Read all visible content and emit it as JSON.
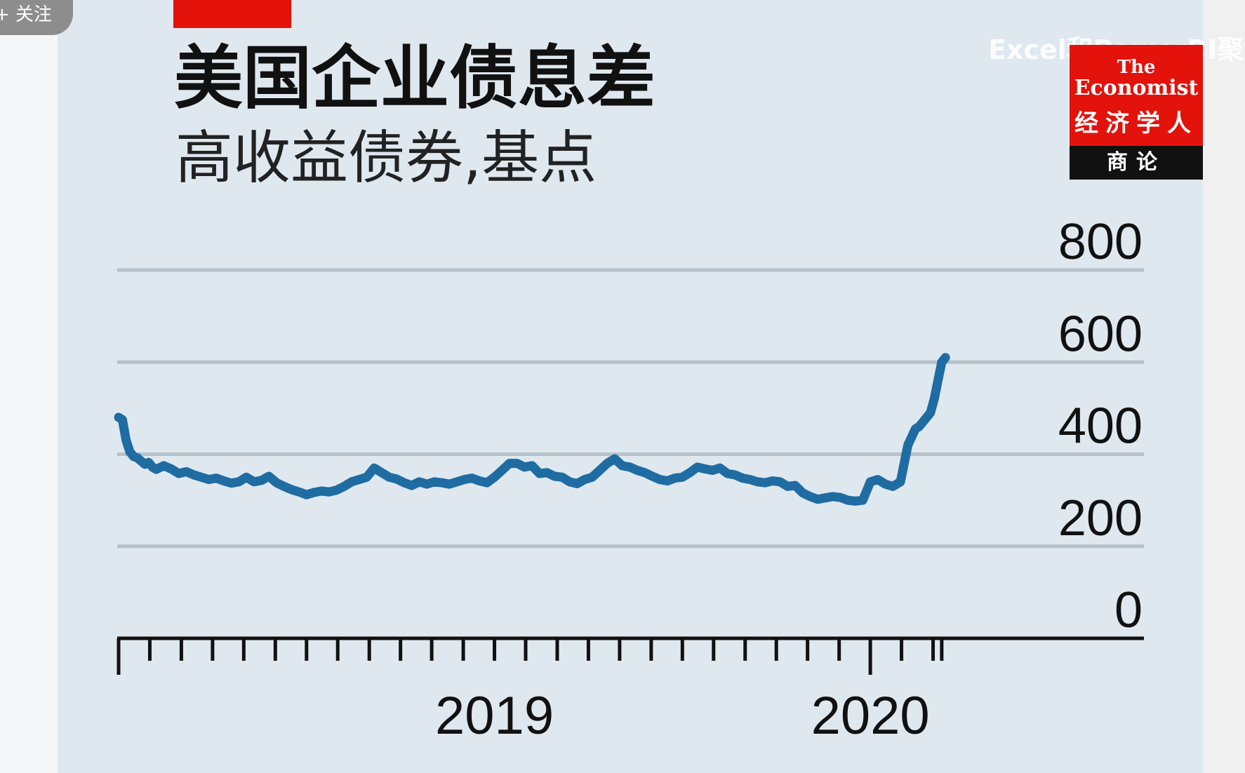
{
  "header": {
    "follow_label": "+ 关注",
    "watermark": "Excel和PowerBI聚焦"
  },
  "logo": {
    "the": "The",
    "economist": "Economist",
    "chinese": "经济学人",
    "section": "商论"
  },
  "colors": {
    "background": "#dfe8ef",
    "accent_red": "#e3120b",
    "line": "#1f6ca3",
    "grid": "#b6c1c9"
  },
  "chart_data": {
    "type": "line",
    "title": "美国企业债息差",
    "subtitle": "高收益债券,基点",
    "xlabel": "",
    "ylabel": "",
    "ylim": [
      0,
      800
    ],
    "yticks": [
      0,
      200,
      400,
      600,
      800
    ],
    "ytick_labels": [
      "0",
      "200",
      "400",
      "600",
      "800"
    ],
    "y_axis_position": "right",
    "grid": true,
    "xlim": [
      2018.0,
      2020.25
    ],
    "xtick_labels": [
      {
        "label": "2019",
        "x": 2019.0
      },
      {
        "label": "2020",
        "x": 2020.0
      }
    ],
    "x_major_ticks": [
      2018.0,
      2020.0
    ],
    "x_minor_ticks": [
      2018.083,
      2018.167,
      2018.25,
      2018.333,
      2018.417,
      2018.5,
      2018.583,
      2018.667,
      2018.75,
      2018.833,
      2018.917,
      2019.0,
      2019.083,
      2019.167,
      2019.25,
      2019.333,
      2019.417,
      2019.5,
      2019.583,
      2019.667,
      2019.75,
      2019.833,
      2019.917,
      2020.083,
      2020.167,
      2020.19
    ],
    "series": [
      {
        "x": [
          2018.0,
          2018.01,
          2018.02,
          2018.03,
          2018.04,
          2018.05,
          2018.06,
          2018.07,
          2018.08,
          2018.09,
          2018.1,
          2018.12,
          2018.14,
          2018.16,
          2018.18,
          2018.2,
          2018.22,
          2018.24,
          2018.26,
          2018.28,
          2018.3,
          2018.32,
          2018.34,
          2018.36,
          2018.38,
          2018.4,
          2018.42,
          2018.44,
          2018.46,
          2018.48,
          2018.5,
          2018.52,
          2018.54,
          2018.56,
          2018.58,
          2018.6,
          2018.62,
          2018.64,
          2018.66,
          2018.68,
          2018.7,
          2018.72,
          2018.74,
          2018.76,
          2018.78,
          2018.8,
          2018.82,
          2018.84,
          2018.86,
          2018.88,
          2018.9,
          2018.92,
          2018.94,
          2018.96,
          2018.98,
          2019.0,
          2019.02,
          2019.04,
          2019.06,
          2019.08,
          2019.1,
          2019.12,
          2019.14,
          2019.16,
          2019.18,
          2019.2,
          2019.22,
          2019.24,
          2019.26,
          2019.28,
          2019.3,
          2019.32,
          2019.34,
          2019.36,
          2019.38,
          2019.4,
          2019.42,
          2019.44,
          2019.46,
          2019.48,
          2019.5,
          2019.52,
          2019.54,
          2019.56,
          2019.58,
          2019.6,
          2019.62,
          2019.64,
          2019.66,
          2019.68,
          2019.7,
          2019.72,
          2019.74,
          2019.76,
          2019.78,
          2019.8,
          2019.82,
          2019.84,
          2019.86,
          2019.88,
          2019.9,
          2019.92,
          2019.94,
          2019.96,
          2019.98,
          2020.0,
          2020.02,
          2020.04,
          2020.06,
          2020.08,
          2020.1,
          2020.12,
          2020.13,
          2020.14,
          2020.15,
          2020.16,
          2020.17,
          2020.18,
          2020.19,
          2020.2
        ],
        "values": [
          480,
          475,
          430,
          405,
          395,
          392,
          385,
          378,
          382,
          372,
          367,
          375,
          368,
          358,
          362,
          355,
          350,
          345,
          348,
          342,
          337,
          340,
          350,
          340,
          343,
          352,
          338,
          330,
          323,
          318,
          312,
          317,
          320,
          318,
          322,
          330,
          340,
          345,
          350,
          370,
          360,
          350,
          346,
          338,
          332,
          340,
          335,
          340,
          338,
          335,
          340,
          345,
          348,
          342,
          338,
          350,
          365,
          380,
          380,
          372,
          375,
          358,
          360,
          352,
          350,
          340,
          336,
          345,
          350,
          365,
          380,
          390,
          375,
          372,
          365,
          360,
          352,
          345,
          342,
          348,
          350,
          360,
          372,
          368,
          365,
          370,
          358,
          355,
          348,
          345,
          340,
          338,
          342,
          340,
          330,
          332,
          316,
          308,
          302,
          305,
          308,
          306,
          300,
          298,
          300,
          340,
          345,
          335,
          330,
          340,
          420,
          455,
          460,
          470,
          480,
          490,
          520,
          560,
          600,
          610
        ]
      }
    ]
  }
}
